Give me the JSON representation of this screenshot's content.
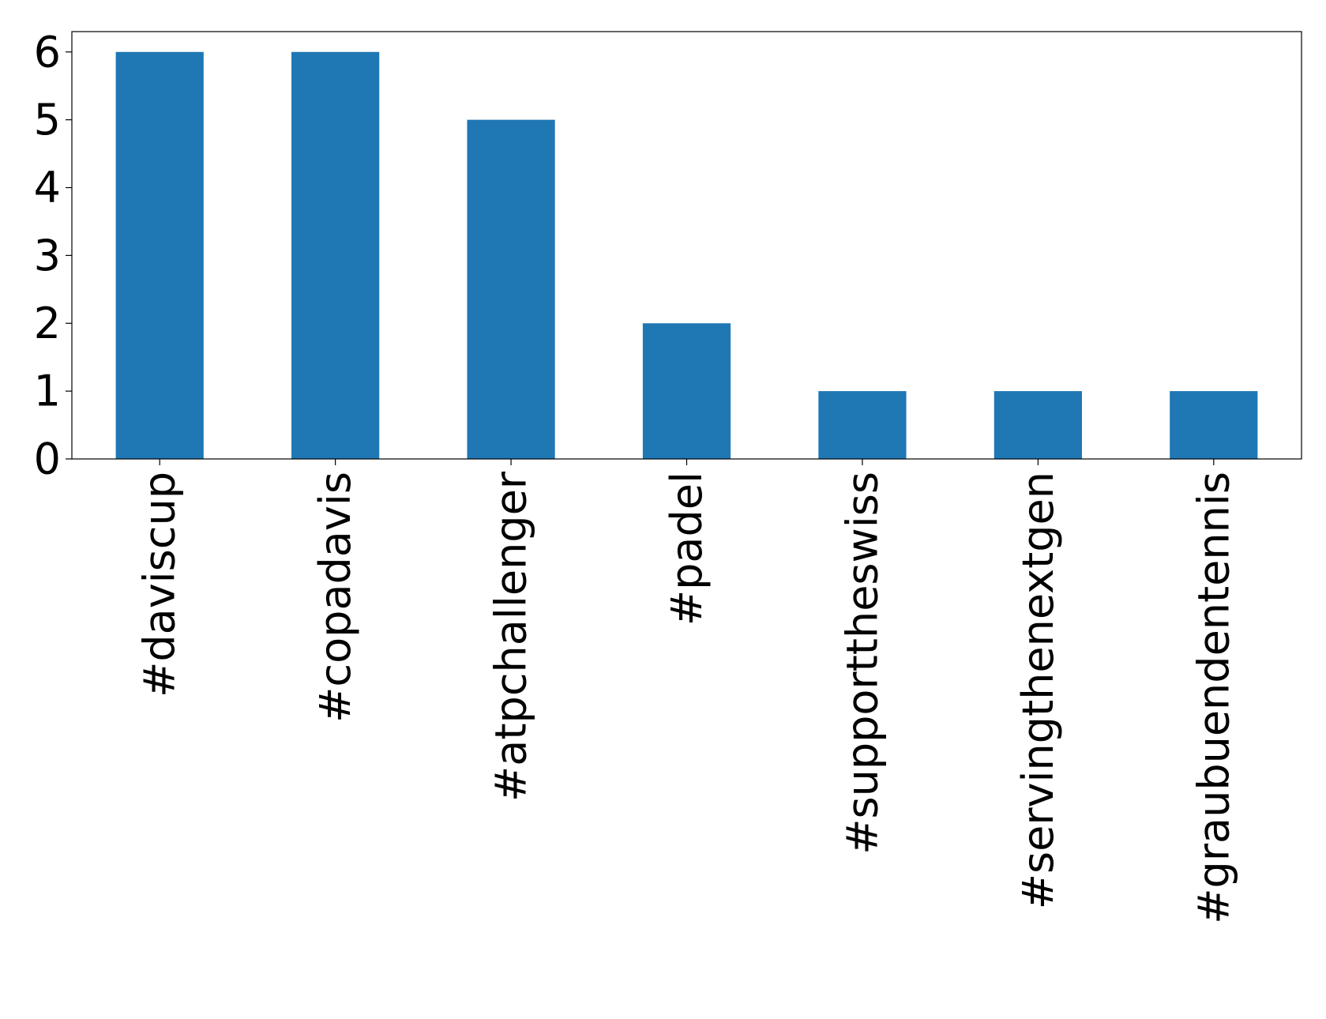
{
  "chart_data": {
    "type": "bar",
    "categories": [
      "#daviscup",
      "#copadavis",
      "#atpchallenger",
      "#padel",
      "#supporttheswiss",
      "#servingthenextgen",
      "#graubuendentennis"
    ],
    "values": [
      6,
      6,
      5,
      2,
      1,
      1,
      1
    ],
    "color": "#1f77b4",
    "ylim": [
      0,
      6.3
    ],
    "yticks": [
      0,
      1,
      2,
      3,
      4,
      5,
      6
    ],
    "grid": false
  }
}
